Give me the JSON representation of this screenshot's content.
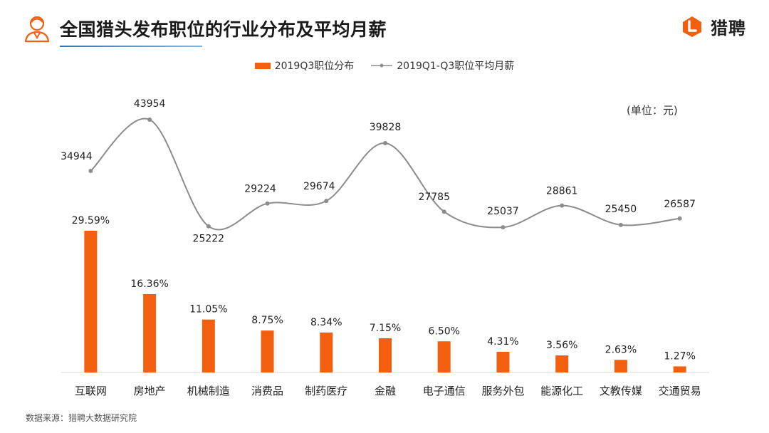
{
  "header": {
    "title": "全国猎头发布职位的行业分布及平均月薪",
    "logo_text": "猎聘",
    "icons": [
      "person-icon",
      "liepin-logo-icon"
    ]
  },
  "legend": {
    "bar_label": "2019Q3职位分布",
    "line_label": "2019Q1-Q3职位平均月薪"
  },
  "unit_note": "(单位：元)",
  "source_note": "数据来源：猎聘大数据研究院",
  "colors": {
    "bar": "#f25f0f",
    "line": "#8c8c8c",
    "axis": "#d9d9d9",
    "accent": "#2f7bbd"
  },
  "chart_data": {
    "type": "bar",
    "categories": [
      "互联网",
      "房地产",
      "机械制造",
      "消费品",
      "制药医疗",
      "金融",
      "电子通信",
      "服务外包",
      "能源化工",
      "文教传媒",
      "交通贸易"
    ],
    "series": [
      {
        "name": "2019Q3职位分布",
        "type": "bar",
        "values": [
          29.59,
          16.36,
          11.05,
          8.75,
          8.34,
          7.15,
          6.5,
          4.31,
          3.56,
          2.63,
          1.27
        ],
        "labels": [
          "29.59%",
          "16.36%",
          "11.05%",
          "8.75%",
          "8.34%",
          "7.15%",
          "6.50%",
          "4.31%",
          "3.56%",
          "2.63%",
          "1.27%"
        ]
      },
      {
        "name": "2019Q1-Q3职位平均月薪",
        "type": "line",
        "values": [
          34944,
          43954,
          25222,
          29224,
          29674,
          39828,
          27785,
          25037,
          28861,
          25450,
          26587
        ],
        "labels": [
          "34944",
          "43954",
          "25222",
          "29224",
          "29674",
          "39828",
          "27785",
          "25037",
          "28861",
          "25450",
          "26587"
        ]
      }
    ],
    "grid": false,
    "legend_position": "top-center"
  }
}
